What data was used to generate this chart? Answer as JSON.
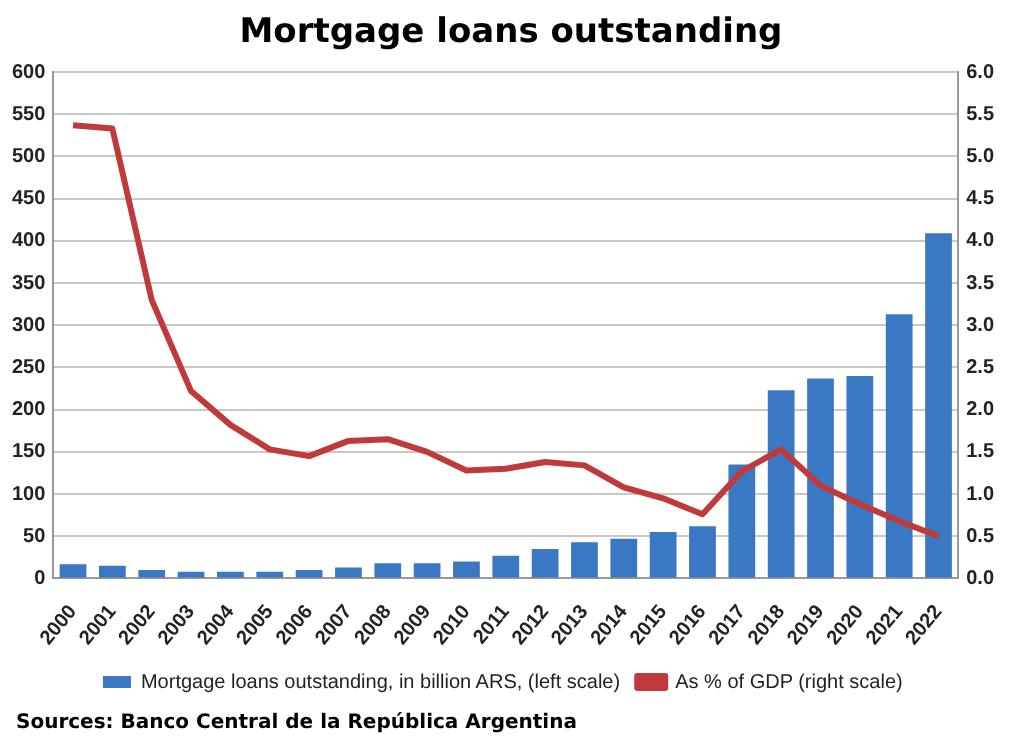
{
  "chart_data": {
    "type": "bar",
    "title": "Mortgage loans outstanding",
    "categories": [
      "2000",
      "2001",
      "2002",
      "2003",
      "2004",
      "2005",
      "2006",
      "2007",
      "2008",
      "2009",
      "2010",
      "2011",
      "2012",
      "2013",
      "2014",
      "2015",
      "2016",
      "2017",
      "2018",
      "2019",
      "2020",
      "2021",
      "2022"
    ],
    "series": [
      {
        "name": "Mortgage loans outstanding, in billion ARS, (left scale)",
        "color": "#3a78c3",
        "values": [
          17,
          15,
          10,
          8,
          8,
          8,
          10,
          13,
          18,
          18,
          20,
          27,
          35,
          43,
          47,
          55,
          62,
          135,
          223,
          237,
          240,
          313,
          409
        ]
      },
      {
        "name": "As % of GDP (right scale)",
        "type": "line",
        "axis": "y2",
        "color": "#c0393b",
        "values": [
          5.37,
          5.33,
          3.3,
          2.22,
          1.82,
          1.53,
          1.45,
          1.63,
          1.65,
          1.5,
          1.28,
          1.3,
          1.38,
          1.34,
          1.08,
          0.95,
          0.76,
          1.27,
          1.53,
          1.1,
          0.88,
          0.68,
          0.5
        ]
      }
    ],
    "ylim": [
      0,
      600
    ],
    "yticks": [
      0,
      50,
      100,
      150,
      200,
      250,
      300,
      350,
      400,
      450,
      500,
      550,
      600
    ],
    "y2lim": [
      0,
      6
    ],
    "y2ticks": [
      {
        "value": 0,
        "label": "0.0"
      },
      {
        "value": 0.5,
        "label": "0.5"
      },
      {
        "value": 1,
        "label": "1.0"
      },
      {
        "value": 1.5,
        "label": "1.5"
      },
      {
        "value": 2,
        "label": "2.0"
      },
      {
        "value": 2.5,
        "label": "2.5"
      },
      {
        "value": 3,
        "label": "3.0"
      },
      {
        "value": 3.5,
        "label": "3.5"
      },
      {
        "value": 4,
        "label": "4.0"
      },
      {
        "value": 4.5,
        "label": "4.5"
      },
      {
        "value": 5,
        "label": "5.0"
      },
      {
        "value": 5.5,
        "label": "5.5"
      },
      {
        "value": 6,
        "label": "6.0"
      }
    ],
    "grid": "y",
    "legend": "bottom",
    "marker": "none",
    "line_style": "solid",
    "annotations": [
      "Sources: Banco Central de la República Argentina"
    ]
  }
}
